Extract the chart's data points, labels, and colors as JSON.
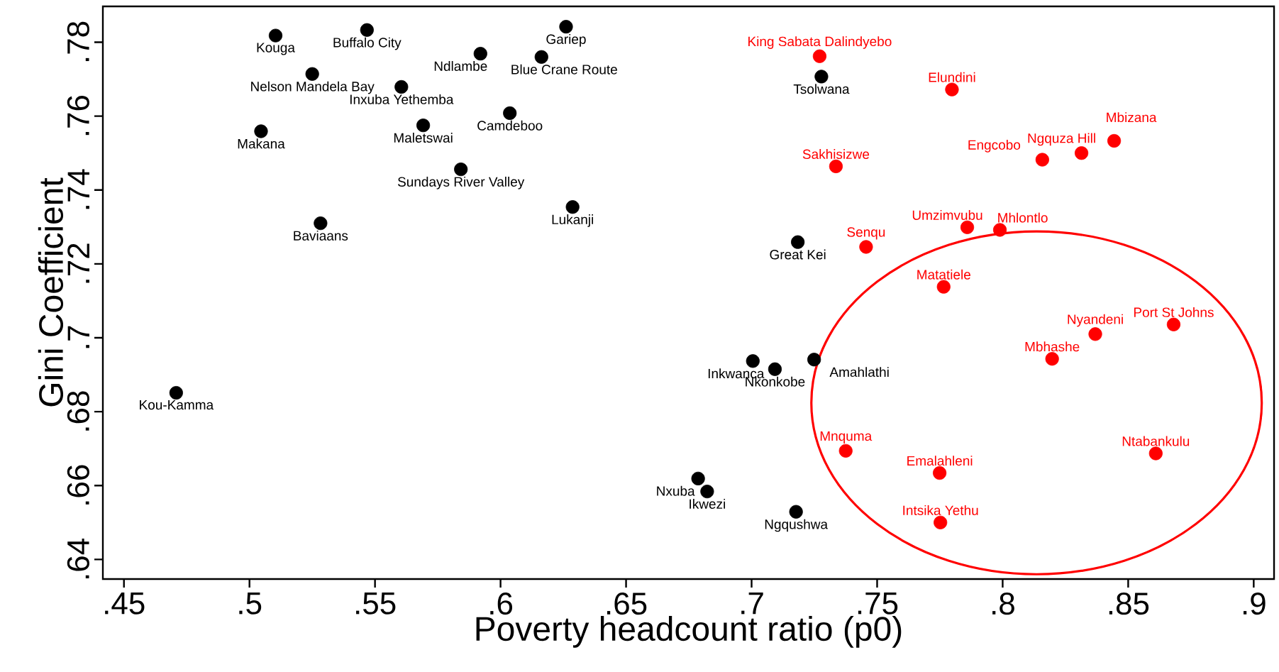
{
  "chart_data": {
    "type": "scatter",
    "xlabel": "Poverty headcount ratio (p0)",
    "ylabel": "Gini Coefficient",
    "xlim": [
      0.4416,
      0.9081
    ],
    "ylim": [
      0.6347,
      0.7897
    ],
    "xticks": [
      {
        "value": 0.45,
        "label": ".45"
      },
      {
        "value": 0.5,
        "label": ".5"
      },
      {
        "value": 0.55,
        "label": ".55"
      },
      {
        "value": 0.6,
        "label": ".6"
      },
      {
        "value": 0.65,
        "label": ".65"
      },
      {
        "value": 0.7,
        "label": ".7"
      },
      {
        "value": 0.75,
        "label": ".75"
      },
      {
        "value": 0.8,
        "label": ".8"
      },
      {
        "value": 0.85,
        "label": ".85"
      },
      {
        "value": 0.9,
        "label": ".9"
      }
    ],
    "yticks": [
      {
        "value": 0.64,
        "label": ".64"
      },
      {
        "value": 0.66,
        "label": ".66"
      },
      {
        "value": 0.68,
        "label": ".68"
      },
      {
        "value": 0.7,
        "label": ".7"
      },
      {
        "value": 0.72,
        "label": ".72"
      },
      {
        "value": 0.74,
        "label": ".74"
      },
      {
        "value": 0.76,
        "label": ".76"
      },
      {
        "value": 0.78,
        "label": ".78"
      }
    ],
    "marker": "circle",
    "grid": false,
    "series": [
      {
        "color": "#000000",
        "x": [
          0.5104,
          0.5468,
          0.6261,
          0.592,
          0.6163,
          0.525,
          0.5605,
          0.5046,
          0.5692,
          0.6037,
          0.5842,
          0.6287,
          0.5283,
          0.4708,
          0.7278,
          0.7184,
          0.7005,
          0.7093,
          0.7249,
          0.6787,
          0.6823,
          0.7177
        ],
        "values": [
          0.7818,
          0.7833,
          0.7842,
          0.7769,
          0.776,
          0.7714,
          0.7679,
          0.7559,
          0.7575,
          0.7608,
          0.7456,
          0.7354,
          0.731,
          0.6851,
          0.7707,
          0.7259,
          0.6937,
          0.6915,
          0.6941,
          0.6619,
          0.6584,
          0.6529
        ]
      },
      {
        "color": "#ff0000",
        "x": [
          0.7271,
          0.7798,
          0.7336,
          0.8158,
          0.8314,
          0.8444,
          0.7456,
          0.7859,
          0.7989,
          0.7765,
          0.8681,
          0.8369,
          0.8197,
          0.7375,
          0.7749,
          0.861,
          0.7752
        ],
        "values": [
          0.7762,
          0.7672,
          0.7464,
          0.7482,
          0.75,
          0.7533,
          0.7246,
          0.7299,
          0.7292,
          0.7138,
          0.7036,
          0.701,
          0.6943,
          0.6694,
          0.6634,
          0.6687,
          0.65
        ]
      }
    ],
    "annotations": [
      {
        "text": "Kouga",
        "x": 0.5104,
        "y": 0.7818
      },
      {
        "text": "Buffalo City",
        "x": 0.5468,
        "y": 0.7833
      },
      {
        "text": "Gariep",
        "x": 0.6261,
        "y": 0.7842
      },
      {
        "text": "Ndlambe",
        "x": 0.592,
        "y": 0.7769
      },
      {
        "text": "Blue Crane Route",
        "x": 0.6163,
        "y": 0.776
      },
      {
        "text": "Nelson Mandela Bay",
        "x": 0.525,
        "y": 0.7714
      },
      {
        "text": "Inxuba Yethemba",
        "x": 0.5605,
        "y": 0.7679
      },
      {
        "text": "Makana",
        "x": 0.5046,
        "y": 0.7559
      },
      {
        "text": "Maletswai",
        "x": 0.5692,
        "y": 0.7575
      },
      {
        "text": "Camdeboo",
        "x": 0.6037,
        "y": 0.7608
      },
      {
        "text": "Sundays River Valley",
        "x": 0.5842,
        "y": 0.7456
      },
      {
        "text": "Lukanji",
        "x": 0.6287,
        "y": 0.7354
      },
      {
        "text": "Baviaans",
        "x": 0.5283,
        "y": 0.731
      },
      {
        "text": "Kou-Kamma",
        "x": 0.4708,
        "y": 0.6851
      },
      {
        "text": "Tsolwana",
        "x": 0.7278,
        "y": 0.7707
      },
      {
        "text": "Great Kei",
        "x": 0.7184,
        "y": 0.7259
      },
      {
        "text": "Inkwanca",
        "x": 0.7005,
        "y": 0.6937
      },
      {
        "text": "Nkonkobe",
        "x": 0.7093,
        "y": 0.6915
      },
      {
        "text": "Amahlathi",
        "x": 0.7249,
        "y": 0.6941
      },
      {
        "text": "Nxuba",
        "x": 0.6787,
        "y": 0.6619
      },
      {
        "text": "Ikwezi",
        "x": 0.6823,
        "y": 0.6584
      },
      {
        "text": "Ngqushwa",
        "x": 0.7177,
        "y": 0.6529
      },
      {
        "text": "King Sabata Dalindyebo",
        "x": 0.7271,
        "y": 0.7762
      },
      {
        "text": "Elundini",
        "x": 0.7798,
        "y": 0.7672
      },
      {
        "text": "Sakhisizwe",
        "x": 0.7336,
        "y": 0.7464
      },
      {
        "text": "Engcobo",
        "x": 0.8158,
        "y": 0.7482
      },
      {
        "text": "Ngquza Hill",
        "x": 0.8314,
        "y": 0.75
      },
      {
        "text": "Mbizana",
        "x": 0.8444,
        "y": 0.7533
      },
      {
        "text": "Senqu",
        "x": 0.7456,
        "y": 0.7246
      },
      {
        "text": "Umzimvubu",
        "x": 0.7859,
        "y": 0.7299
      },
      {
        "text": "Mhlontlo",
        "x": 0.7989,
        "y": 0.7292
      },
      {
        "text": "Matatiele",
        "x": 0.7765,
        "y": 0.7138
      },
      {
        "text": "Port St Johns",
        "x": 0.8681,
        "y": 0.7036
      },
      {
        "text": "Nyandeni",
        "x": 0.8369,
        "y": 0.701
      },
      {
        "text": "Mbhashe",
        "x": 0.8197,
        "y": 0.6943
      },
      {
        "text": "Mnquma",
        "x": 0.7375,
        "y": 0.6694
      },
      {
        "text": "Emalahleni",
        "x": 0.7749,
        "y": 0.6634
      },
      {
        "text": "Ntabankulu",
        "x": 0.861,
        "y": 0.6687
      },
      {
        "text": "Intsika Yethu",
        "x": 0.7752,
        "y": 0.65
      }
    ]
  }
}
